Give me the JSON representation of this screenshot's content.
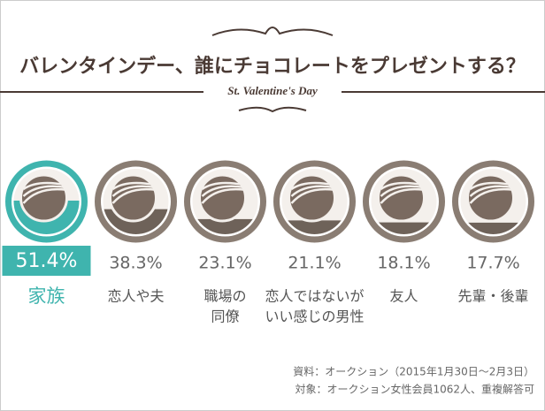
{
  "chart_data": {
    "type": "fill-circle",
    "title": "バレンタインデー、誰にチョコレートをプレゼントする？",
    "subtitle": "St. Valentine's Day",
    "categories": [
      [
        "家族"
      ],
      [
        "恋人や夫"
      ],
      [
        "職場の",
        "同僚"
      ],
      [
        "恋人ではないが",
        "いい感じの男性"
      ],
      [
        "友人"
      ],
      [
        "先輩・後輩"
      ]
    ],
    "values": [
      51.4,
      38.3,
      23.1,
      21.1,
      18.1,
      17.7
    ],
    "value_labels": [
      "51.4%",
      "38.3%",
      "23.1%",
      "21.1%",
      "18.1%",
      "17.7%"
    ],
    "ylim": [
      0,
      100
    ],
    "color": "#6e6259",
    "highlight_color": "#3fb4ae",
    "highlight": [
      0
    ],
    "notes": [
      "資料：オークション（2015年1月30日～2月3日）",
      "対象：オークション女性会員1062人、重複解答可"
    ]
  }
}
